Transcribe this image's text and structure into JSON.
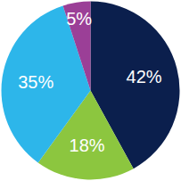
{
  "chart_data": {
    "type": "pie",
    "values": [
      42,
      18,
      35,
      5
    ],
    "value_labels": [
      "42%",
      "18%",
      "35%",
      "5%"
    ],
    "colors": [
      "#0b1f4d",
      "#8cc63f",
      "#2db6ea",
      "#9b3f97"
    ],
    "data_labels": true
  }
}
